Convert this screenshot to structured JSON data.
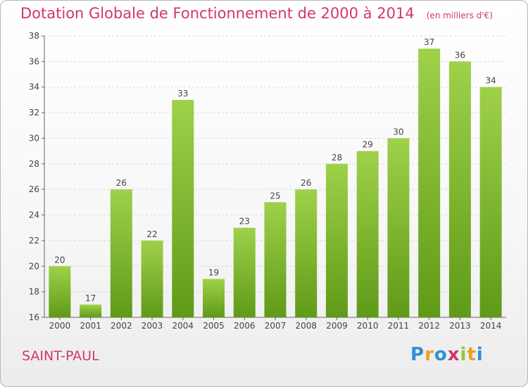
{
  "header": {
    "title": "Dotation Globale de Fonctionnement de 2000 à 2014",
    "unit": "(en milliers d'€)"
  },
  "footer": {
    "commune": "SAINT-PAUL",
    "logo_letters": [
      "P",
      "r",
      "o",
      "x",
      "i",
      "t",
      "i"
    ],
    "logo_colors": [
      "#2f8fd8",
      "#f0a020",
      "#2f8fd8",
      "#d2376a",
      "#8cc63f",
      "#f0a020",
      "#2f8fd8"
    ]
  },
  "chart_data": {
    "type": "bar",
    "title": "Dotation Globale de Fonctionnement de 2000 à 2014",
    "subtitle": "(en milliers d'€)",
    "categories": [
      "2000",
      "2001",
      "2002",
      "2003",
      "2004",
      "2005",
      "2006",
      "2007",
      "2008",
      "2009",
      "2010",
      "2011",
      "2012",
      "2013",
      "2014"
    ],
    "values": [
      20,
      17,
      26,
      22,
      33,
      19,
      23,
      25,
      26,
      28,
      29,
      30,
      37,
      36,
      34
    ],
    "ylim": [
      16,
      38
    ],
    "yticks": [
      16,
      18,
      20,
      22,
      24,
      26,
      28,
      30,
      32,
      34,
      36,
      38
    ],
    "grid": true,
    "bar_color_light": "#9fd14a",
    "bar_color_dark": "#5f9a18",
    "grid_color": "#d8d8d8"
  }
}
